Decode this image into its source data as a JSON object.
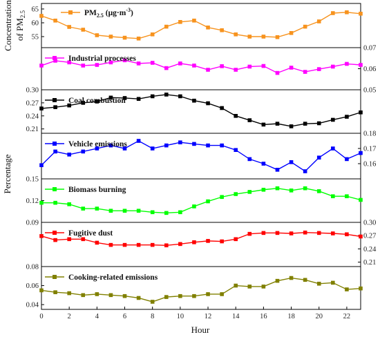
{
  "chart_data": {
    "type": "line",
    "xlabel": "Hour",
    "ylabel": "Percentage",
    "xlim": [
      0,
      23
    ],
    "x_ticks": [
      0,
      2,
      4,
      6,
      8,
      10,
      12,
      14,
      16,
      18,
      20,
      22
    ],
    "x_tick_labels": [
      "0",
      "2",
      "4",
      "6",
      "8",
      "10",
      "12",
      "14",
      "16",
      "18",
      "20",
      "22"
    ],
    "x": [
      0,
      1,
      2,
      3,
      4,
      5,
      6,
      7,
      8,
      9,
      10,
      11,
      12,
      13,
      14,
      15,
      16,
      17,
      18,
      19,
      20,
      21,
      22,
      23
    ],
    "panels": [
      {
        "name": "PM2.5 (μg·m⁻³)",
        "legend": "PM",
        "legend_sub": "2.5",
        "legend_unit": " (μg·m",
        "legend_sup": "-3",
        "legend_end": ")",
        "ylabel_line1": "Concentration",
        "ylabel_line2": "of PM",
        "ylabel_sub": "2.5",
        "axis_side": "left",
        "ylim": [
          51,
          67
        ],
        "yticks": [
          55,
          60,
          65
        ],
        "ytick_labels": [
          "55",
          "60",
          "65"
        ],
        "color": "#f7931e",
        "values": [
          62.5,
          60.8,
          58.5,
          57.5,
          55.5,
          55.0,
          54.6,
          54.3,
          55.8,
          58.6,
          60.3,
          60.8,
          58.3,
          57.3,
          55.8,
          55.0,
          55.0,
          54.8,
          56.3,
          58.6,
          60.5,
          63.5,
          63.8,
          63.3
        ]
      },
      {
        "name": "Industrial processes",
        "legend": "Industrial processes",
        "axis_side": "right",
        "ylim": [
          0.05,
          0.07
        ],
        "yticks": [
          0.05,
          0.06,
          0.07
        ],
        "ytick_labels": [
          "0.05",
          "0.06",
          "0.07"
        ],
        "color": "#ff00ff",
        "values": [
          0.0615,
          0.0638,
          0.063,
          0.0615,
          0.0618,
          0.063,
          0.064,
          0.0625,
          0.0628,
          0.0603,
          0.0625,
          0.0615,
          0.0595,
          0.0612,
          0.0595,
          0.061,
          0.0613,
          0.058,
          0.0605,
          0.0585,
          0.0598,
          0.061,
          0.0623,
          0.0618
        ]
      },
      {
        "name": "Coal combustion",
        "legend": "Coal combustion",
        "axis_side": "left",
        "ylim": [
          0.2,
          0.3
        ],
        "yticks": [
          0.21,
          0.24,
          0.27,
          0.3
        ],
        "ytick_labels": [
          "0.21",
          "0.24",
          "0.27",
          "0.30"
        ],
        "color": "#000000",
        "values": [
          0.257,
          0.26,
          0.264,
          0.27,
          0.273,
          0.282,
          0.281,
          0.279,
          0.285,
          0.289,
          0.285,
          0.275,
          0.269,
          0.258,
          0.24,
          0.23,
          0.22,
          0.222,
          0.216,
          0.222,
          0.223,
          0.231,
          0.238,
          0.248
        ]
      },
      {
        "name": "Vehicle emissions",
        "legend": "Vehicle emissions",
        "axis_side": "right",
        "ylim": [
          0.15,
          0.18
        ],
        "yticks": [
          0.16,
          0.17,
          0.18
        ],
        "ytick_labels": [
          "0.16",
          "0.17",
          "0.18"
        ],
        "color": "#0000ff",
        "values": [
          0.159,
          0.168,
          0.166,
          0.168,
          0.17,
          0.172,
          0.17,
          0.175,
          0.17,
          0.172,
          0.174,
          0.173,
          0.172,
          0.172,
          0.169,
          0.163,
          0.16,
          0.156,
          0.161,
          0.155,
          0.164,
          0.17,
          0.163,
          0.167
        ]
      },
      {
        "name": "Biomass burning",
        "legend": "Biomass burning",
        "axis_side": "left",
        "ylim": [
          0.09,
          0.15
        ],
        "yticks": [
          0.09,
          0.12,
          0.15
        ],
        "ytick_labels": [
          "0.09",
          "0.12",
          "0.15"
        ],
        "color": "#00ff00",
        "values": [
          0.117,
          0.117,
          0.115,
          0.109,
          0.109,
          0.106,
          0.106,
          0.106,
          0.104,
          0.103,
          0.104,
          0.112,
          0.119,
          0.125,
          0.129,
          0.132,
          0.135,
          0.137,
          0.134,
          0.137,
          0.133,
          0.126,
          0.126,
          0.121
        ]
      },
      {
        "name": "Fugitive dust",
        "legend": "Fugitive dust",
        "axis_side": "right",
        "ylim": [
          0.2,
          0.3
        ],
        "yticks": [
          0.21,
          0.24,
          0.27,
          0.3
        ],
        "ytick_labels": [
          "0.21",
          "0.24",
          "0.27",
          "0.30"
        ],
        "color": "#ff0000",
        "values": [
          0.269,
          0.26,
          0.262,
          0.262,
          0.254,
          0.249,
          0.249,
          0.249,
          0.249,
          0.248,
          0.251,
          0.255,
          0.258,
          0.257,
          0.262,
          0.274,
          0.276,
          0.276,
          0.275,
          0.277,
          0.276,
          0.275,
          0.273,
          0.268
        ]
      },
      {
        "name": "Cooking-related emissions",
        "legend": "Cooking-related emissions",
        "axis_side": "left",
        "ylim": [
          0.035,
          0.08
        ],
        "yticks": [
          0.04,
          0.06,
          0.08
        ],
        "ytick_labels": [
          "0.04",
          "0.06",
          "0.08"
        ],
        "color": "#808000",
        "values": [
          0.055,
          0.053,
          0.052,
          0.05,
          0.051,
          0.05,
          0.049,
          0.047,
          0.043,
          0.048,
          0.049,
          0.049,
          0.051,
          0.051,
          0.06,
          0.059,
          0.059,
          0.065,
          0.068,
          0.066,
          0.062,
          0.063,
          0.056,
          0.057
        ]
      }
    ]
  }
}
